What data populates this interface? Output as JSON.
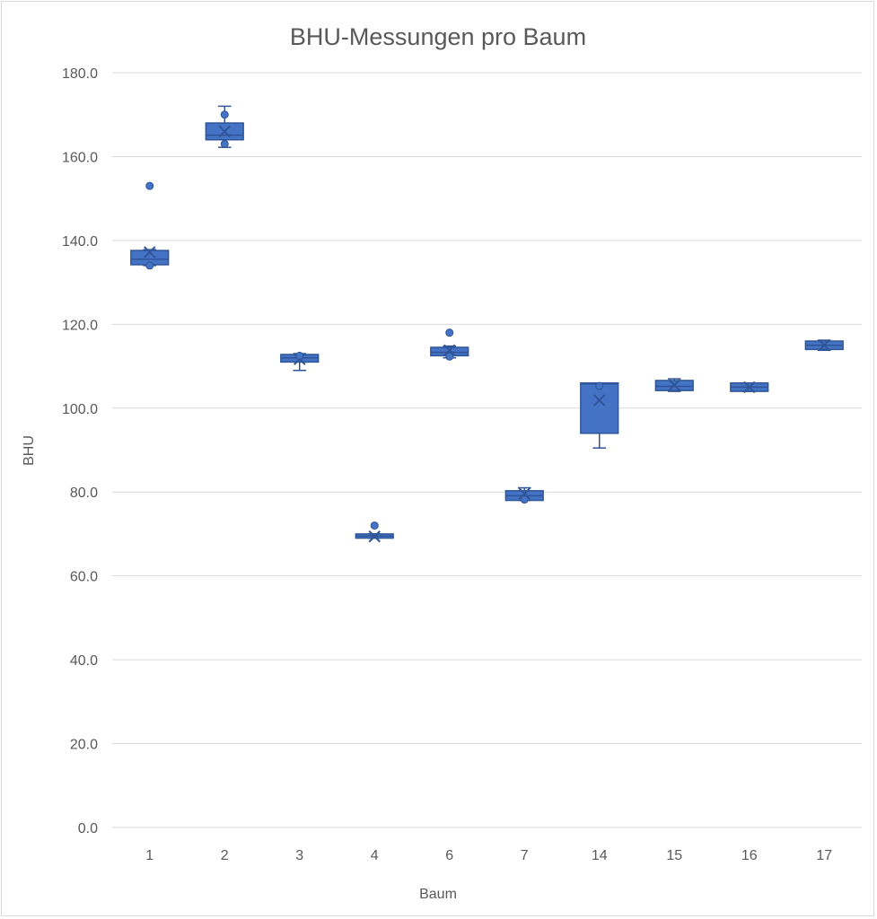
{
  "chart_data": {
    "type": "box",
    "title": "BHU-Messungen pro Baum",
    "xlabel": "Baum",
    "ylabel": "BHU",
    "ylim": [
      0,
      180
    ],
    "yticks": [
      "0.0",
      "20.0",
      "40.0",
      "60.0",
      "80.0",
      "100.0",
      "120.0",
      "140.0",
      "160.0",
      "180.0"
    ],
    "grid": true,
    "legend": "none",
    "color": "#4472c4",
    "edge_color": "#2f5597",
    "categories": [
      "1",
      "2",
      "3",
      "4",
      "6",
      "7",
      "14",
      "15",
      "16",
      "17"
    ],
    "boxes": [
      {
        "category": "1",
        "min": 134.0,
        "q1": 134.2,
        "median": 135.5,
        "q3": 137.6,
        "max": 137.8,
        "mean": 137.2,
        "outliers": [
          153.0,
          134.0
        ]
      },
      {
        "category": "2",
        "min": 162.2,
        "q1": 164.0,
        "median": 165.1,
        "q3": 168.0,
        "max": 172.0,
        "mean": 166.0,
        "outliers": [
          170.0,
          163.0
        ]
      },
      {
        "category": "3",
        "min": 109.0,
        "q1": 111.0,
        "median": 112.0,
        "q3": 112.8,
        "max": 113.0,
        "mean": 111.7,
        "outliers": [
          112.5
        ]
      },
      {
        "category": "4",
        "min": 69.0,
        "q1": 69.0,
        "median": 69.5,
        "q3": 70.0,
        "max": 70.0,
        "mean": 69.4,
        "outliers": [
          72.0
        ]
      },
      {
        "category": "6",
        "min": 112.0,
        "q1": 112.5,
        "median": 113.3,
        "q3": 114.5,
        "max": 114.8,
        "mean": 113.8,
        "outliers": [
          118.0,
          112.3
        ]
      },
      {
        "category": "7",
        "min": 78.0,
        "q1": 78.0,
        "median": 79.1,
        "q3": 80.3,
        "max": 81.0,
        "mean": 79.6,
        "outliers": [
          78.2
        ]
      },
      {
        "category": "14",
        "min": 90.5,
        "q1": 94.0,
        "median": 105.8,
        "q3": 106.0,
        "max": 106.0,
        "mean": 101.9,
        "outliers": [
          105.3
        ]
      },
      {
        "category": "15",
        "min": 104.0,
        "q1": 104.2,
        "median": 105.2,
        "q3": 106.6,
        "max": 107.0,
        "mean": 105.5,
        "outliers": []
      },
      {
        "category": "16",
        "min": 104.0,
        "q1": 104.0,
        "median": 105.0,
        "q3": 106.0,
        "max": 106.0,
        "mean": 105.0,
        "outliers": []
      },
      {
        "category": "17",
        "min": 113.8,
        "q1": 114.0,
        "median": 115.0,
        "q3": 116.0,
        "max": 116.2,
        "mean": 115.0,
        "outliers": []
      }
    ]
  }
}
